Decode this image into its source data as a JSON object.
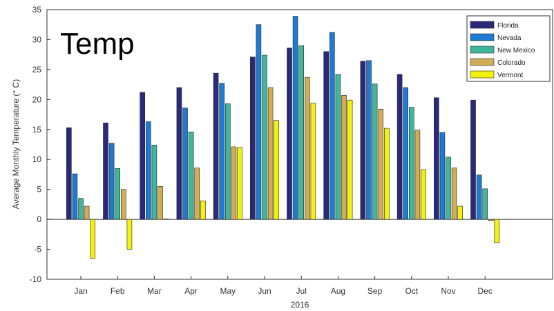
{
  "chart_data": {
    "type": "bar",
    "title": "Temp",
    "xlabel": "2016",
    "ylabel": "Average Monthly Temperature (° C)",
    "ylim": [
      -10,
      35
    ],
    "yticks": [
      -10,
      -5,
      0,
      5,
      10,
      15,
      20,
      25,
      30,
      35
    ],
    "legend_position": "top-right",
    "grid": false,
    "categories": [
      "Jan",
      "Feb",
      "Mar",
      "Apr",
      "May",
      "Jun",
      "Jul",
      "Aug",
      "Sep",
      "Oct",
      "Nov",
      "Dec"
    ],
    "series": [
      {
        "name": "Florida",
        "color": "#2b2a7a",
        "values": [
          15.3,
          16.1,
          21.2,
          22.0,
          24.4,
          27.1,
          28.6,
          28.0,
          26.4,
          24.2,
          20.3,
          19.9
        ]
      },
      {
        "name": "Nevada",
        "color": "#1f7bd1",
        "values": [
          7.6,
          12.7,
          16.3,
          18.6,
          22.7,
          32.5,
          33.9,
          31.2,
          26.5,
          22.0,
          14.5,
          7.4
        ]
      },
      {
        "name": "New Mexico",
        "color": "#3fb79c",
        "values": [
          3.5,
          8.5,
          12.4,
          14.6,
          19.3,
          27.4,
          29.0,
          24.2,
          22.6,
          18.7,
          10.4,
          5.1
        ]
      },
      {
        "name": "Colorado",
        "color": "#d2ad55",
        "values": [
          2.2,
          5.0,
          5.5,
          8.6,
          12.1,
          22.0,
          23.7,
          20.7,
          18.4,
          14.9,
          8.6,
          -0.2
        ]
      },
      {
        "name": "Vermont",
        "color": "#f2f20d",
        "values": [
          -6.5,
          -5.0,
          0.1,
          3.1,
          12.0,
          16.5,
          19.4,
          19.9,
          15.2,
          8.3,
          2.2,
          -3.9
        ]
      }
    ]
  }
}
